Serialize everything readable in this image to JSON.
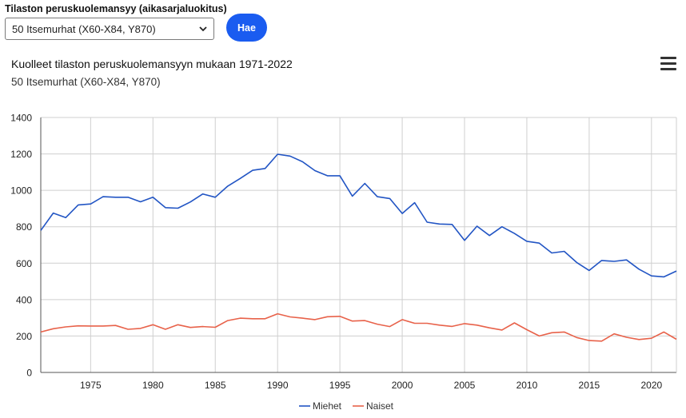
{
  "form": {
    "label": "Tilaston peruskuolemansyy (aikasarjaluokitus)",
    "selected_option": "50 Itsemurhat (X60-X84, Y870)",
    "search_button": "Hae"
  },
  "chart_data": {
    "type": "line",
    "title": "Kuolleet tilaston peruskuolemansyyn mukaan 1971-2022",
    "subtitle": "50 Itsemurhat (X60-X84, Y870)",
    "xlabel": "",
    "ylabel": "",
    "ylim": [
      0,
      1400
    ],
    "xlim": [
      1971,
      2022
    ],
    "yticks": [
      0,
      200,
      400,
      600,
      800,
      1000,
      1200,
      1400
    ],
    "xticks": [
      1975,
      1980,
      1985,
      1990,
      1995,
      2000,
      2005,
      2010,
      2015,
      2020
    ],
    "grid": true,
    "legend_position": "bottom-center",
    "x": [
      1971,
      1972,
      1973,
      1974,
      1975,
      1976,
      1977,
      1978,
      1979,
      1980,
      1981,
      1982,
      1983,
      1984,
      1985,
      1986,
      1987,
      1988,
      1989,
      1990,
      1991,
      1992,
      1993,
      1994,
      1995,
      1996,
      1997,
      1998,
      1999,
      2000,
      2001,
      2002,
      2003,
      2004,
      2005,
      2006,
      2007,
      2008,
      2009,
      2010,
      2011,
      2012,
      2013,
      2014,
      2015,
      2016,
      2017,
      2018,
      2019,
      2020,
      2021,
      2022
    ],
    "series": [
      {
        "name": "Miehet",
        "color": "#2255c4",
        "values": [
          780,
          875,
          850,
          920,
          925,
          965,
          962,
          962,
          937,
          962,
          905,
          902,
          936,
          980,
          962,
          1023,
          1065,
          1110,
          1120,
          1198,
          1188,
          1157,
          1108,
          1080,
          1080,
          968,
          1038,
          965,
          955,
          873,
          932,
          825,
          815,
          813,
          725,
          803,
          752,
          800,
          763,
          720,
          710,
          656,
          665,
          604,
          560,
          615,
          610,
          618,
          567,
          530,
          525,
          557
        ]
      },
      {
        "name": "Naiset",
        "color": "#e8624a",
        "values": [
          222,
          240,
          250,
          256,
          255,
          255,
          258,
          237,
          242,
          262,
          237,
          262,
          247,
          252,
          248,
          285,
          298,
          295,
          295,
          322,
          305,
          298,
          290,
          306,
          308,
          282,
          285,
          265,
          252,
          290,
          270,
          270,
          260,
          253,
          268,
          260,
          245,
          233,
          272,
          235,
          200,
          218,
          222,
          192,
          175,
          172,
          212,
          193,
          181,
          188,
          222,
          182
        ]
      }
    ]
  }
}
